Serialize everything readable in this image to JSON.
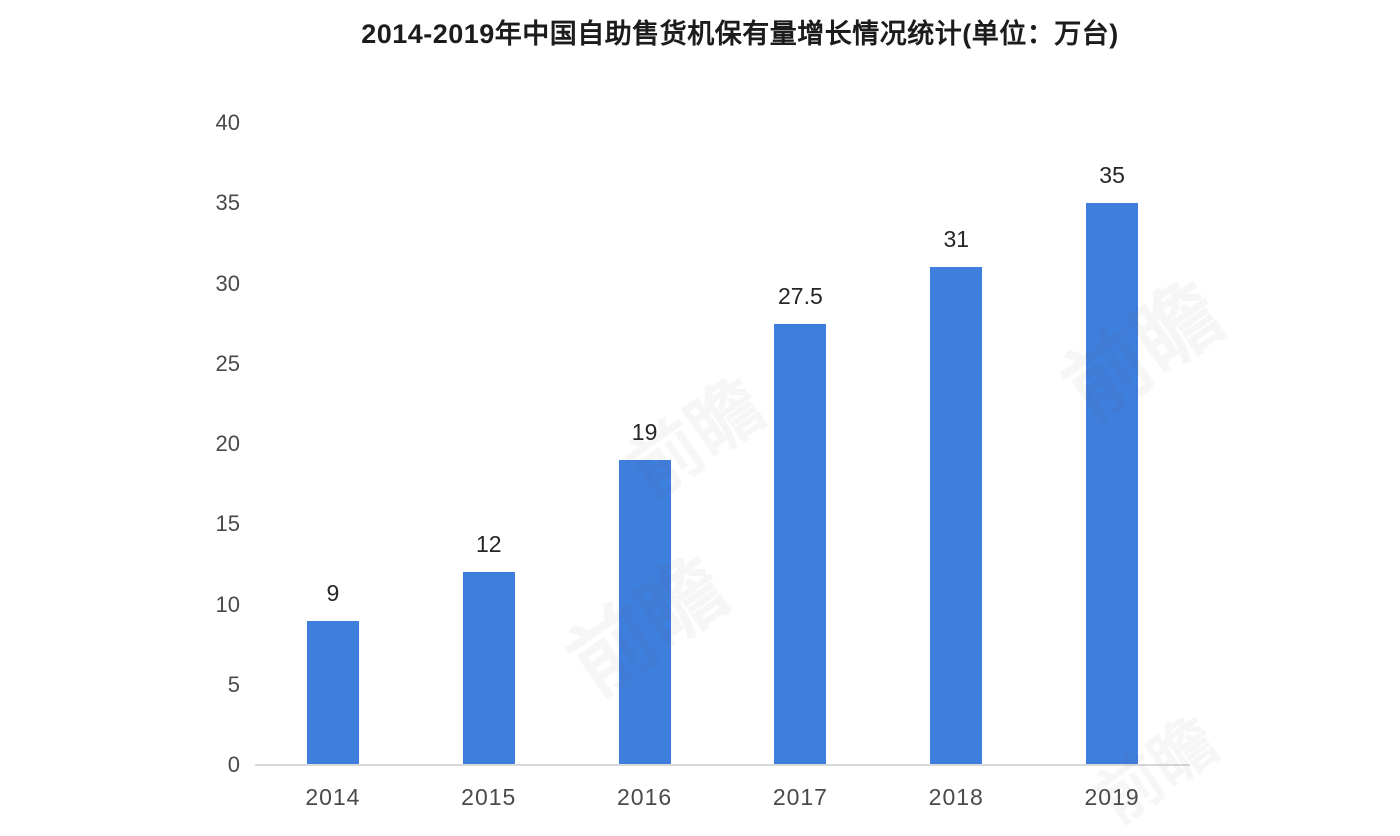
{
  "chart_data": {
    "type": "bar",
    "title": "2014-2019年中国自助售货机保有量增长情况统计(单位：万台)",
    "categories": [
      "2014",
      "2015",
      "2016",
      "2017",
      "2018",
      "2019"
    ],
    "values": [
      9,
      12,
      19,
      27.5,
      31,
      35
    ],
    "value_labels": [
      "9",
      "12",
      "19",
      "27.5",
      "31",
      "35"
    ],
    "xlabel": "",
    "ylabel": "",
    "ylim": [
      0,
      40
    ],
    "ytick_step": 5,
    "ytick_labels": [
      "0",
      "5",
      "10",
      "15",
      "20",
      "25",
      "30",
      "35",
      "40"
    ],
    "grid": false,
    "legend": "none",
    "bar_color": "#3e7edc",
    "axis_line_color": "#d9d9d9",
    "tick_label_color": "#4a4a4a",
    "value_label_color": "#262626",
    "title_color": "#1c1c1c"
  },
  "watermark": {
    "text": "前瞻",
    "color": "rgba(110,110,110,0.06)"
  }
}
